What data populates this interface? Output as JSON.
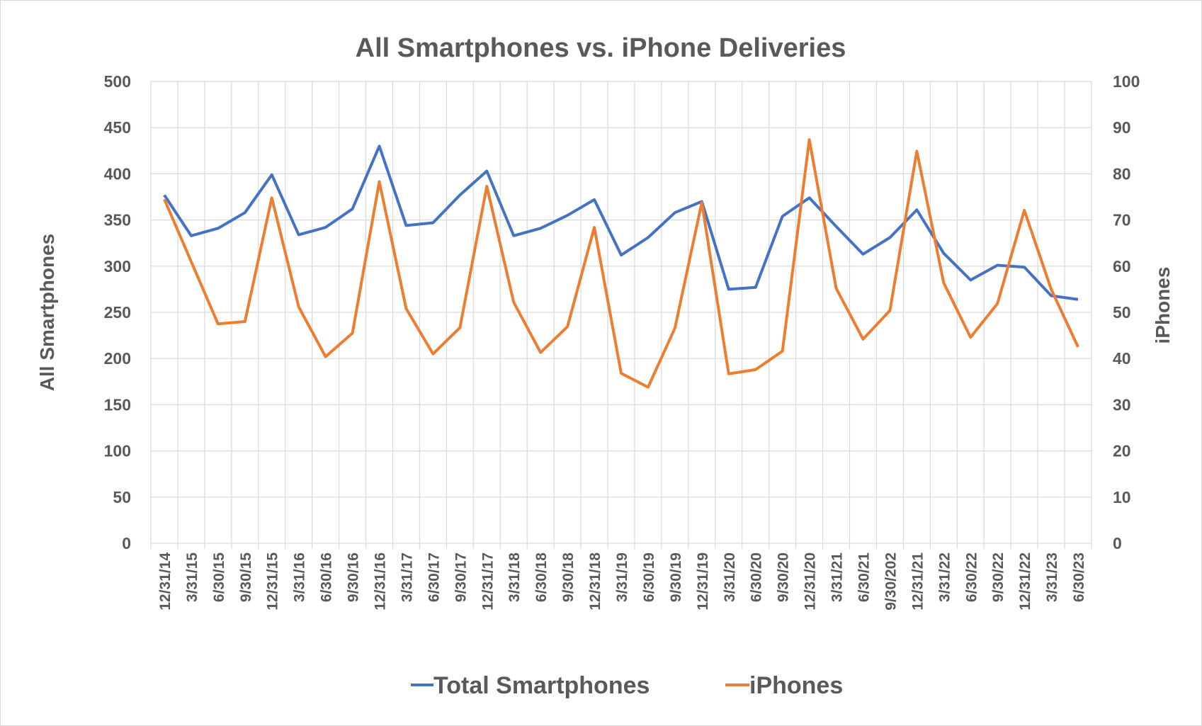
{
  "chart_data": {
    "type": "line",
    "title": "All Smartphones vs. iPhone Deliveries",
    "ylabel": "All Smartphones",
    "y2label": "iPhones",
    "ylim": [
      0,
      500
    ],
    "y2lim": [
      0,
      100
    ],
    "yticks": [
      0,
      50,
      100,
      150,
      200,
      250,
      300,
      350,
      400,
      450,
      500
    ],
    "y2ticks": [
      0,
      10,
      20,
      30,
      40,
      50,
      60,
      70,
      80,
      90,
      100
    ],
    "grid": true,
    "legend": "bottom",
    "categories": [
      "12/31/14",
      "3/31/15",
      "6/30/15",
      "9/30/15",
      "12/31/15",
      "3/31/16",
      "6/30/16",
      "9/30/16",
      "12/31/16",
      "3/31/17",
      "6/30/17",
      "9/30/17",
      "12/31/17",
      "3/31/18",
      "6/30/18",
      "9/30/18",
      "12/31/18",
      "3/31/19",
      "6/30/19",
      "9/30/19",
      "12/31/19",
      "3/31/20",
      "6/30/20",
      "9/30/20",
      "12/31/20",
      "3/31/21",
      "6/30/21",
      "9/30/202",
      "12/31/21",
      "3/31/22",
      "6/30/22",
      "9/30/22",
      "12/31/22",
      "3/31/23",
      "6/30/23"
    ],
    "series": [
      {
        "name": "Total Smartphones",
        "axis": "left",
        "color": "#4472C4",
        "values": [
          377,
          333,
          341,
          358,
          399,
          334,
          342,
          362,
          430,
          344,
          347,
          377,
          403,
          333,
          341,
          355,
          372,
          312,
          331,
          358,
          370,
          275,
          277,
          354,
          374,
          343,
          313,
          331,
          361,
          314,
          285,
          301,
          299,
          268,
          264
        ]
      },
      {
        "name": "iPhones",
        "axis": "right",
        "color": "#ED7D31",
        "values": [
          74.5,
          61,
          47.5,
          48,
          74.8,
          51.2,
          40.4,
          45.5,
          78.3,
          50.8,
          41,
          46.7,
          77.3,
          52.2,
          41.3,
          46.9,
          68.4,
          36.8,
          33.8,
          46.6,
          73.8,
          36.7,
          37.6,
          41.6,
          87.4,
          55.2,
          44.2,
          50.4,
          84.9,
          56.4,
          44.6,
          51.9,
          72.1,
          55,
          42.5
        ]
      }
    ]
  }
}
